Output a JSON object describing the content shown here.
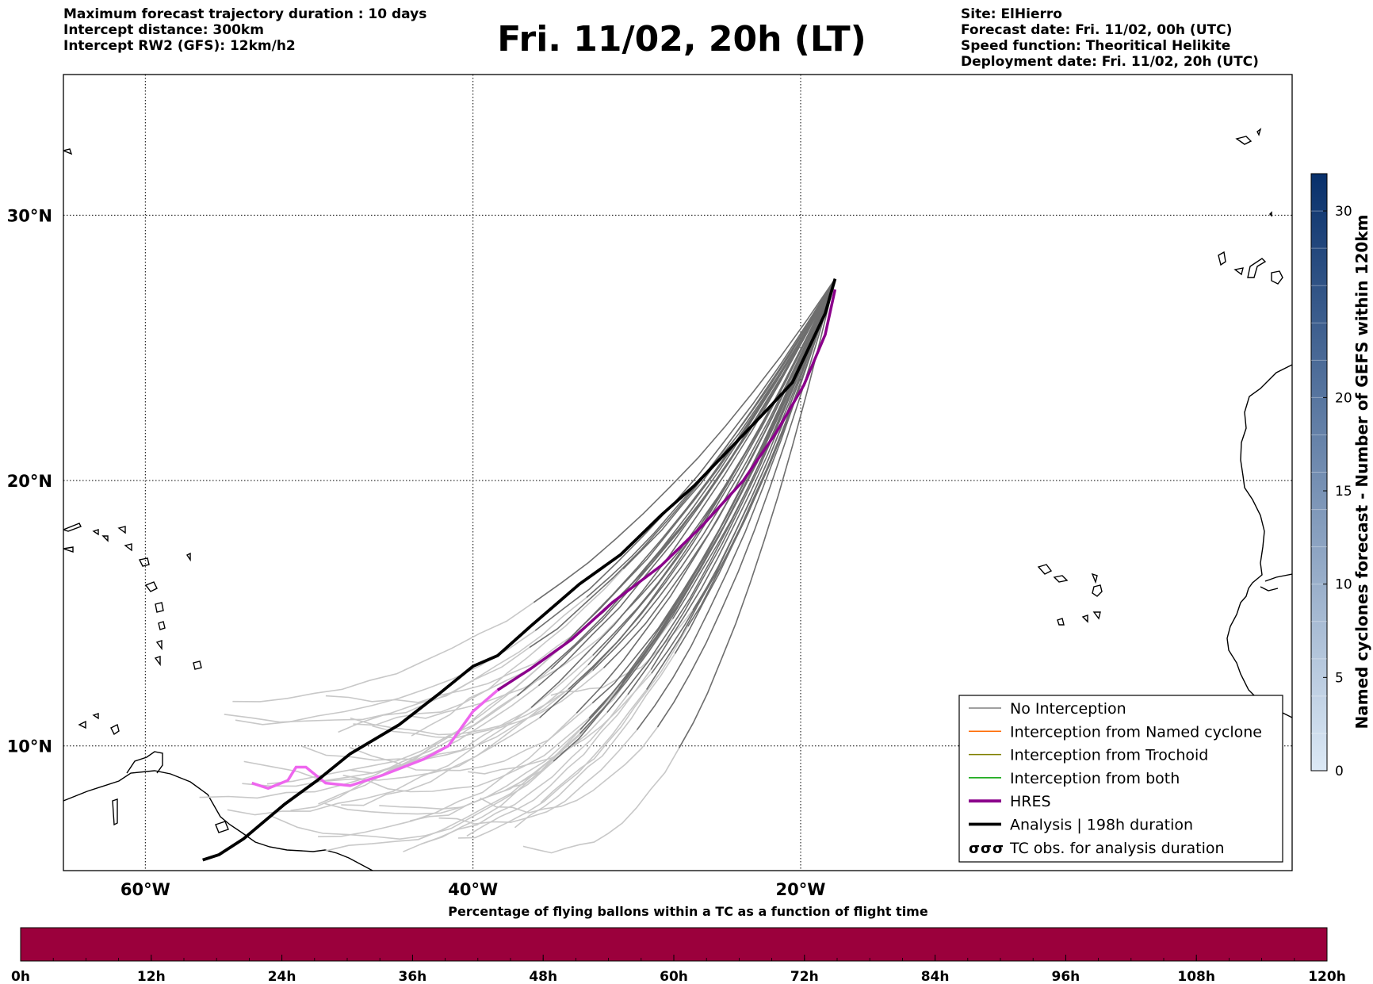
{
  "header": {
    "left_lines": [
      "Maximum forecast trajectory duration : 10 days",
      "Intercept distance: 300km",
      "Intercept RW2 (GFS):  12km/h2"
    ],
    "title": "Fri. 11/02, 20h (LT)",
    "right_lines": [
      "Site: ElHierro",
      "Forecast date: Fri. 11/02, 00h (UTC)",
      "Speed function: Theoritical Helikite",
      "Deployment date: Fri. 11/02, 20h (UTC)"
    ]
  },
  "map": {
    "lon_range": [
      -65,
      10.0
    ],
    "lat_range": [
      5.3,
      35.3
    ],
    "lat_labels": [
      {
        "lat": 30,
        "label": "30°N"
      },
      {
        "lat": 20,
        "label": "20°N"
      },
      {
        "lat": 10,
        "label": "10°N"
      }
    ],
    "lon_labels": [
      {
        "lon": -60,
        "label": "60°W"
      },
      {
        "lon": -40,
        "label": "40°W"
      },
      {
        "lon": -20,
        "label": "20°W"
      }
    ],
    "colors": {
      "no_interception_near": "#6e6e6e",
      "no_interception_far": "#c8c8c8",
      "hres": "#8b008b",
      "hres_tail": "#ee66ee",
      "analysis": "#000000"
    }
  },
  "legend": {
    "items": [
      {
        "label": "No Interception",
        "color": "#808080",
        "style": "thin"
      },
      {
        "label": "Interception from Named cyclone",
        "color": "#ff6a00",
        "style": "thin"
      },
      {
        "label": "Interception from Trochoid",
        "color": "#808000",
        "style": "thin"
      },
      {
        "label": "Interception from both",
        "color": "#00a000",
        "style": "thin"
      },
      {
        "label": "HRES",
        "color": "#8b008b",
        "style": "thick"
      },
      {
        "label": "Analysis | 198h duration",
        "color": "#000000",
        "style": "thick"
      },
      {
        "label": "TC obs. for analysis duration",
        "color": "#000000",
        "style": "symbol"
      }
    ]
  },
  "colorbar_right": {
    "label": "Named cyclones forecast - Number of GEFS within 120km",
    "ticks": [
      0,
      5,
      10,
      15,
      20,
      30
    ],
    "range": [
      0,
      32
    ],
    "color_low": "#dce9f6",
    "color_high": "#08306b"
  },
  "bottom_bar": {
    "title": "Percentage of flying ballons within a TC as a function of flight time",
    "ticks": [
      "0h",
      "12h",
      "24h",
      "36h",
      "48h",
      "60h",
      "72h",
      "84h",
      "96h",
      "108h",
      "120h"
    ],
    "color": "#9b003c"
  }
}
